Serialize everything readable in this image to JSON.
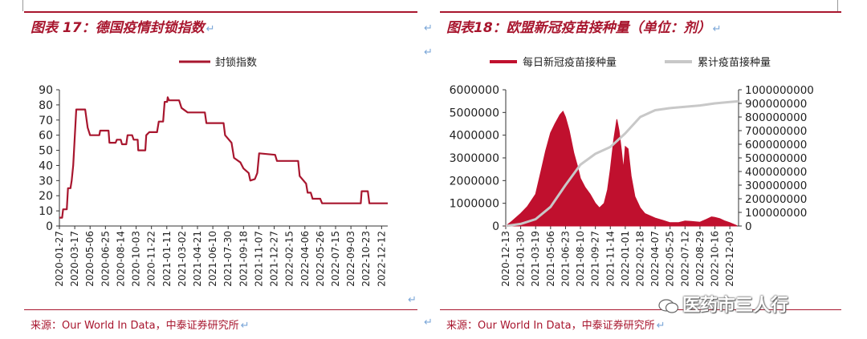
{
  "left": {
    "title": "图表 17：德国疫情封锁指数",
    "source": "来源：Our World In Data，中泰证券研究所",
    "chart_data": {
      "type": "line",
      "title": "",
      "legend_position": "top-center",
      "color": "#a8162e",
      "ylim": [
        0,
        90
      ],
      "yticks": [
        "0",
        "10",
        "20",
        "30",
        "40",
        "50",
        "60",
        "70",
        "80",
        "90"
      ],
      "xticks": [
        "2020-01-27",
        "2020-03-17",
        "2020-05-06",
        "2020-06-25",
        "2020-08-14",
        "2020-10-03",
        "2020-11-22",
        "2021-01-11",
        "2021-03-02",
        "2021-04-21",
        "2021-06-10",
        "2021-07-30",
        "2021-09-18",
        "2021-11-07",
        "2021-12-27",
        "2022-02-15",
        "2022-04-06",
        "2022-05-26",
        "2022-07-15",
        "2022-09-03",
        "2022-10-23",
        "2022-12-12"
      ],
      "series": [
        {
          "name": "封锁指数",
          "points": [
            [
              "2020-01-27",
              5.5
            ],
            [
              "2020-02-05",
              5.5
            ],
            [
              "2020-02-08",
              11
            ],
            [
              "2020-02-20",
              11
            ],
            [
              "2020-02-24",
              25
            ],
            [
              "2020-03-03",
              25
            ],
            [
              "2020-03-07",
              30
            ],
            [
              "2020-03-12",
              40
            ],
            [
              "2020-03-22",
              77
            ],
            [
              "2020-04-20",
              77
            ],
            [
              "2020-04-28",
              65
            ],
            [
              "2020-05-06",
              60
            ],
            [
              "2020-06-05",
              60
            ],
            [
              "2020-06-08",
              63
            ],
            [
              "2020-07-05",
              63
            ],
            [
              "2020-07-08",
              55
            ],
            [
              "2020-07-28",
              55
            ],
            [
              "2020-08-01",
              57
            ],
            [
              "2020-08-14",
              57
            ],
            [
              "2020-08-18",
              54
            ],
            [
              "2020-09-01",
              54
            ],
            [
              "2020-09-05",
              60
            ],
            [
              "2020-09-20",
              60
            ],
            [
              "2020-09-25",
              57
            ],
            [
              "2020-10-08",
              57
            ],
            [
              "2020-10-10",
              50
            ],
            [
              "2020-11-02",
              50
            ],
            [
              "2020-11-05",
              60
            ],
            [
              "2020-11-15",
              62
            ],
            [
              "2020-12-10",
              62
            ],
            [
              "2020-12-16",
              69
            ],
            [
              "2020-12-30",
              69
            ],
            [
              "2021-01-04",
              82
            ],
            [
              "2021-01-12",
              82
            ],
            [
              "2021-01-14",
              85
            ],
            [
              "2021-01-18",
              83
            ],
            [
              "2021-02-20",
              83
            ],
            [
              "2021-02-28",
              78
            ],
            [
              "2021-03-20",
              75
            ],
            [
              "2021-05-15",
              75
            ],
            [
              "2021-05-20",
              68
            ],
            [
              "2021-07-15",
              68
            ],
            [
              "2021-07-20",
              60
            ],
            [
              "2021-08-10",
              55
            ],
            [
              "2021-08-18",
              45
            ],
            [
              "2021-09-08",
              42
            ],
            [
              "2021-09-18",
              38
            ],
            [
              "2021-10-05",
              35
            ],
            [
              "2021-10-10",
              30
            ],
            [
              "2021-10-25",
              31
            ],
            [
              "2021-11-02",
              35
            ],
            [
              "2021-11-08",
              48
            ],
            [
              "2021-12-30",
              47
            ],
            [
              "2022-01-05",
              43
            ],
            [
              "2022-03-15",
              43
            ],
            [
              "2022-03-20",
              33
            ],
            [
              "2022-04-10",
              28
            ],
            [
              "2022-04-15",
              22
            ],
            [
              "2022-04-25",
              22
            ],
            [
              "2022-05-01",
              18
            ],
            [
              "2022-05-26",
              18
            ],
            [
              "2022-06-01",
              15
            ],
            [
              "2022-10-05",
              15
            ],
            [
              "2022-10-08",
              23
            ],
            [
              "2022-10-28",
              23
            ],
            [
              "2022-11-02",
              15
            ],
            [
              "2023-01-01",
              15
            ]
          ]
        }
      ]
    }
  },
  "right": {
    "title": "图表18：欧盟新冠疫苗接种量（单位：剂）",
    "source": "来源：Our World In Data，中泰证券研究所",
    "chart_data": {
      "type": "area",
      "title": "",
      "legend_position": "top-center",
      "y_left_lim": [
        0,
        6000000
      ],
      "y_right_lim": [
        0,
        1000000000
      ],
      "y_left_ticks": [
        "0",
        "1000000",
        "2000000",
        "3000000",
        "4000000",
        "5000000",
        "6000000"
      ],
      "y_right_ticks": [
        "0",
        "100000000",
        "200000000",
        "300000000",
        "400000000",
        "500000000",
        "600000000",
        "700000000",
        "800000000",
        "900000000",
        "1000000000"
      ],
      "xticks": [
        "2020-12-13",
        "2021-01-30",
        "2021-03-19",
        "2021-05-06",
        "2021-06-23",
        "2021-08-10",
        "2021-09-27",
        "2021-11-14",
        "2022-01-01",
        "2022-02-18",
        "2022-04-07",
        "2022-05-25",
        "2022-07-12",
        "2022-08-29",
        "2022-10-16",
        "2022-12-03"
      ],
      "series": [
        {
          "name": "每日新冠疫苗接种量",
          "axis": "left",
          "color": "#c0102e",
          "points": [
            [
              "2020-12-13",
              0
            ],
            [
              "2021-01-01",
              200000
            ],
            [
              "2021-01-30",
              550000
            ],
            [
              "2021-02-20",
              850000
            ],
            [
              "2021-03-19",
              1400000
            ],
            [
              "2021-04-05",
              2400000
            ],
            [
              "2021-04-20",
              3300000
            ],
            [
              "2021-05-06",
              4100000
            ],
            [
              "2021-05-20",
              4500000
            ],
            [
              "2021-06-05",
              4900000
            ],
            [
              "2021-06-15",
              5050000
            ],
            [
              "2021-06-23",
              4800000
            ],
            [
              "2021-07-05",
              4200000
            ],
            [
              "2021-07-20",
              3200000
            ],
            [
              "2021-08-01",
              2600000
            ],
            [
              "2021-08-10",
              2100000
            ],
            [
              "2021-08-25",
              1700000
            ],
            [
              "2021-09-10",
              1400000
            ],
            [
              "2021-09-27",
              1000000
            ],
            [
              "2021-10-10",
              800000
            ],
            [
              "2021-10-25",
              1000000
            ],
            [
              "2021-11-05",
              1600000
            ],
            [
              "2021-11-14",
              2500000
            ],
            [
              "2021-11-25",
              3800000
            ],
            [
              "2021-12-05",
              4700000
            ],
            [
              "2021-12-12",
              4200000
            ],
            [
              "2021-12-20",
              3300000
            ],
            [
              "2021-12-26",
              2500000
            ],
            [
              "2022-01-01",
              3500000
            ],
            [
              "2022-01-10",
              3400000
            ],
            [
              "2022-01-20",
              2200000
            ],
            [
              "2022-02-01",
              1300000
            ],
            [
              "2022-02-18",
              800000
            ],
            [
              "2022-03-05",
              550000
            ],
            [
              "2022-04-07",
              350000
            ],
            [
              "2022-05-01",
              250000
            ],
            [
              "2022-05-25",
              150000
            ],
            [
              "2022-06-20",
              150000
            ],
            [
              "2022-07-12",
              220000
            ],
            [
              "2022-08-01",
              200000
            ],
            [
              "2022-08-29",
              170000
            ],
            [
              "2022-09-20",
              300000
            ],
            [
              "2022-10-05",
              400000
            ],
            [
              "2022-10-16",
              380000
            ],
            [
              "2022-11-01",
              320000
            ],
            [
              "2022-11-15",
              230000
            ],
            [
              "2022-12-03",
              150000
            ],
            [
              "2022-12-25",
              20000
            ]
          ]
        },
        {
          "name": "累计疫苗接种量",
          "axis": "right",
          "color": "#c8c8c8",
          "points": [
            [
              "2020-12-13",
              0
            ],
            [
              "2021-01-30",
              15000000
            ],
            [
              "2021-03-19",
              50000000
            ],
            [
              "2021-05-06",
              140000000
            ],
            [
              "2021-06-23",
              300000000
            ],
            [
              "2021-08-10",
              450000000
            ],
            [
              "2021-09-27",
              530000000
            ],
            [
              "2021-11-14",
              580000000
            ],
            [
              "2022-01-01",
              680000000
            ],
            [
              "2022-02-18",
              800000000
            ],
            [
              "2022-04-07",
              850000000
            ],
            [
              "2022-05-25",
              865000000
            ],
            [
              "2022-07-12",
              875000000
            ],
            [
              "2022-08-29",
              885000000
            ],
            [
              "2022-10-16",
              900000000
            ],
            [
              "2022-12-03",
              910000000
            ],
            [
              "2022-12-31",
              915000000
            ]
          ]
        }
      ]
    }
  },
  "watermark": "医药市三人行",
  "colors": {
    "accent": "#a8162e",
    "series_red": "#c0102e",
    "series_grey": "#c8c8c8"
  },
  "icons": {
    "return_mark": "↵",
    "watermark_icon": "wechat-icon"
  }
}
